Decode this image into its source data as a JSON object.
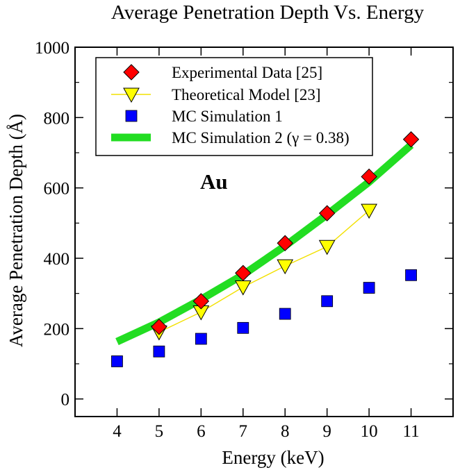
{
  "chart_data": {
    "type": "scatter",
    "title": "Average Penetration Depth Vs. Energy",
    "xlabel": "Energy (keV)",
    "ylabel": "Average Penetration Depth (Å)",
    "xlim": [
      3,
      12
    ],
    "ylim": [
      -50,
      1000
    ],
    "x_ticks": [
      4,
      5,
      6,
      7,
      8,
      9,
      10,
      11
    ],
    "y_ticks": [
      0,
      200,
      400,
      600,
      800,
      1000
    ],
    "annotation": "Au",
    "legend_position": "top-left",
    "series": [
      {
        "name": "Experimental Data [25]",
        "marker": "diamond",
        "color": "#ff0000",
        "x": [
          5,
          6,
          7,
          8,
          9,
          10,
          11
        ],
        "y": [
          205,
          278,
          358,
          443,
          528,
          632,
          738
        ]
      },
      {
        "name": "Theoretical Model [23]",
        "marker": "triangle-down",
        "color": "#ffff00",
        "line": true,
        "x": [
          5,
          6,
          7,
          8,
          9,
          10
        ],
        "y": [
          190,
          247,
          318,
          378,
          433,
          536
        ]
      },
      {
        "name": "MC Simulation 1",
        "marker": "square",
        "color": "#0000ff",
        "x": [
          4,
          5,
          6,
          7,
          8,
          9,
          10,
          11
        ],
        "y": [
          107,
          135,
          171,
          202,
          242,
          278,
          316,
          352
        ]
      },
      {
        "name": "MC Simulation 2 (γ = 0.38)",
        "marker": "line",
        "color": "#22dd22",
        "x": [
          4,
          5,
          6,
          7,
          8,
          9,
          10,
          11
        ],
        "y": [
          163,
          218,
          283,
          353,
          435,
          524,
          617,
          722
        ]
      }
    ]
  }
}
